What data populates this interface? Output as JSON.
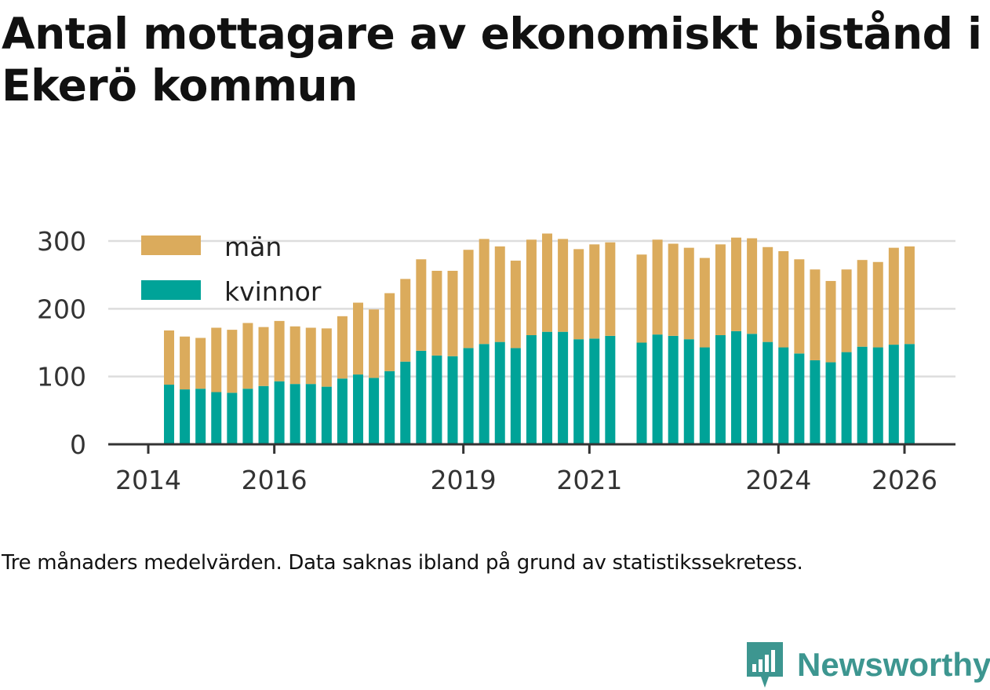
{
  "header": {
    "title": "Antal mottagare av ekonomiskt bistånd i Ekerö kommun"
  },
  "caption": "Tre månaders medelvärden. Data saknas ibland på grund av statistikssekretess.",
  "brand": {
    "name": "Newsworthy",
    "color": "#3d9690",
    "icon": "newsworthy-logo-icon"
  },
  "colors": {
    "kvinnor": "#00a398",
    "man": "#dbab5c",
    "axis": "#333333",
    "grid": "#dddddd"
  },
  "chart_data": {
    "type": "bar",
    "stacked": true,
    "title": "Antal mottagare av ekonomiskt bistånd i Ekerö kommun",
    "xlabel": "",
    "ylabel": "",
    "ylim": [
      0,
      300
    ],
    "yticks": [
      0,
      100,
      200,
      300
    ],
    "xlim": [
      2014.0,
      2026.25
    ],
    "xticks": [
      {
        "value": 2014.0,
        "label": "2014"
      },
      {
        "value": 2016.0,
        "label": "2016"
      },
      {
        "value": 2019.0,
        "label": "2019"
      },
      {
        "value": 2021.0,
        "label": "2021"
      },
      {
        "value": 2024.0,
        "label": "2024"
      },
      {
        "value": 2026.0,
        "label": "2026"
      }
    ],
    "legend": {
      "position": "top-left",
      "entries": [
        {
          "key": "man",
          "label": "män"
        },
        {
          "key": "kvinnor",
          "label": "kvinnor"
        }
      ]
    },
    "x": [
      2014.33,
      2014.58,
      2014.83,
      2015.08,
      2015.33,
      2015.58,
      2015.83,
      2016.08,
      2016.33,
      2016.58,
      2016.83,
      2017.08,
      2017.33,
      2017.58,
      2017.83,
      2018.08,
      2018.33,
      2018.58,
      2018.83,
      2019.08,
      2019.33,
      2019.58,
      2019.83,
      2020.08,
      2020.33,
      2020.58,
      2020.83,
      2021.08,
      2021.33,
      2021.58,
      2021.83,
      2022.08,
      2022.33,
      2022.58,
      2022.83,
      2023.08,
      2023.33,
      2023.58,
      2023.83,
      2024.08,
      2024.33,
      2024.58,
      2024.83,
      2025.08,
      2025.33,
      2025.58,
      2025.83,
      2026.08
    ],
    "series": [
      {
        "name": "kvinnor",
        "key": "kvinnor",
        "values": [
          88,
          81,
          82,
          77,
          76,
          82,
          86,
          93,
          89,
          89,
          85,
          97,
          103,
          98,
          108,
          122,
          138,
          131,
          130,
          142,
          148,
          151,
          142,
          161,
          166,
          166,
          155,
          156,
          160,
          null,
          150,
          162,
          160,
          155,
          143,
          161,
          167,
          163,
          151,
          143,
          134,
          124,
          121,
          136,
          144,
          143,
          147,
          148
        ]
      },
      {
        "name": "män",
        "key": "man",
        "values": [
          80,
          78,
          75,
          95,
          93,
          97,
          87,
          89,
          85,
          83,
          86,
          92,
          106,
          101,
          115,
          122,
          135,
          125,
          126,
          145,
          155,
          141,
          129,
          141,
          145,
          137,
          133,
          139,
          138,
          null,
          130,
          140,
          136,
          135,
          132,
          134,
          138,
          141,
          140,
          142,
          139,
          134,
          120,
          122,
          128,
          126,
          143,
          144
        ]
      }
    ]
  }
}
